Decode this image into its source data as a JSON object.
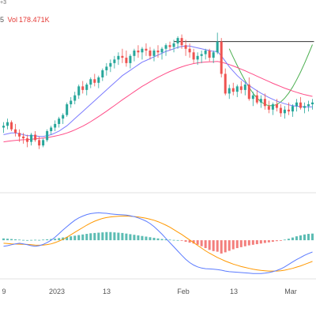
{
  "header": {
    "top_fragment": "+3",
    "legend_fragment": "5",
    "volume_label": "Vol",
    "volume_value": "178.471K"
  },
  "chart_data": [
    {
      "type": "candlestick",
      "xaxis_ticks": [
        "9",
        "2023",
        "13",
        "Feb",
        "13",
        "Mar"
      ],
      "colors": {
        "up": "#26a69a",
        "down": "#ef5350",
        "ma_fast": "#7b7bff",
        "ma_slow": "#ff4d88",
        "arc": "#4caf50",
        "hline": "#333333"
      },
      "candles": [
        [
          132,
          135,
          129,
          133
        ],
        [
          133,
          137,
          131,
          135
        ],
        [
          135,
          136,
          130,
          131
        ],
        [
          131,
          134,
          127,
          129
        ],
        [
          129,
          131,
          124,
          127
        ],
        [
          127,
          129,
          123,
          126
        ],
        [
          126,
          128,
          121,
          124
        ],
        [
          124,
          129,
          122,
          128
        ],
        [
          128,
          130,
          124,
          125
        ],
        [
          125,
          127,
          120,
          122
        ],
        [
          122,
          126,
          121,
          125
        ],
        [
          125,
          131,
          124,
          130
        ],
        [
          130,
          133,
          128,
          132
        ],
        [
          132,
          136,
          130,
          134
        ],
        [
          134,
          138,
          132,
          137
        ],
        [
          137,
          140,
          134,
          139
        ],
        [
          139,
          146,
          138,
          145
        ],
        [
          145,
          149,
          143,
          147
        ],
        [
          147,
          152,
          145,
          150
        ],
        [
          150,
          156,
          148,
          155
        ],
        [
          155,
          158,
          151,
          153
        ],
        [
          153,
          157,
          150,
          156
        ],
        [
          156,
          160,
          154,
          159
        ],
        [
          159,
          162,
          155,
          157
        ],
        [
          157,
          161,
          154,
          160
        ],
        [
          160,
          165,
          158,
          164
        ],
        [
          164,
          168,
          161,
          166
        ],
        [
          166,
          170,
          163,
          168
        ],
        [
          168,
          172,
          165,
          170
        ],
        [
          170,
          174,
          167,
          172
        ],
        [
          172,
          176,
          168,
          171
        ],
        [
          171,
          175,
          166,
          168
        ],
        [
          168,
          173,
          165,
          172
        ],
        [
          172,
          176,
          169,
          175
        ],
        [
          175,
          178,
          171,
          174
        ],
        [
          174,
          177,
          170,
          176
        ],
        [
          176,
          179,
          172,
          175
        ],
        [
          175,
          177,
          170,
          172
        ],
        [
          172,
          176,
          169,
          175
        ],
        [
          175,
          178,
          171,
          174
        ],
        [
          174,
          177,
          170,
          176
        ],
        [
          176,
          179,
          172,
          178
        ],
        [
          178,
          180,
          175,
          177
        ],
        [
          177,
          181,
          174,
          179
        ],
        [
          179,
          183,
          176,
          182
        ],
        [
          182,
          184,
          176,
          178
        ],
        [
          178,
          181,
          172,
          176
        ],
        [
          176,
          179,
          171,
          174
        ],
        [
          174,
          176,
          168,
          170
        ],
        [
          170,
          174,
          167,
          172
        ],
        [
          172,
          175,
          168,
          173
        ],
        [
          173,
          176,
          170,
          175
        ],
        [
          175,
          176,
          169,
          171
        ],
        [
          171,
          175,
          168,
          174
        ],
        [
          174,
          185,
          173,
          180
        ],
        [
          180,
          182,
          160,
          162
        ],
        [
          162,
          165,
          150,
          151
        ],
        [
          151,
          156,
          148,
          154
        ],
        [
          154,
          157,
          150,
          152
        ],
        [
          152,
          156,
          149,
          155
        ],
        [
          155,
          158,
          151,
          153
        ],
        [
          153,
          157,
          150,
          156
        ],
        [
          156,
          160,
          147,
          148
        ],
        [
          148,
          152,
          144,
          150
        ],
        [
          150,
          153,
          145,
          146
        ],
        [
          146,
          150,
          143,
          148
        ],
        [
          148,
          151,
          142,
          144
        ],
        [
          144,
          147,
          140,
          142
        ],
        [
          142,
          146,
          139,
          145
        ],
        [
          145,
          148,
          141,
          143
        ],
        [
          143,
          145,
          138,
          140
        ],
        [
          140,
          144,
          137,
          142
        ],
        [
          142,
          146,
          139,
          141
        ],
        [
          141,
          145,
          138,
          144
        ],
        [
          144,
          148,
          141,
          146
        ],
        [
          146,
          149,
          142,
          143
        ],
        [
          143,
          146,
          140,
          144
        ],
        [
          144,
          147,
          141,
          145
        ],
        [
          145,
          148,
          142,
          146
        ]
      ],
      "ma_fast": [
        128,
        128.5,
        129,
        129,
        128.5,
        128,
        127.5,
        127.5,
        127.5,
        127,
        127,
        127.5,
        128,
        129,
        130,
        131.5,
        133,
        135,
        137,
        139,
        141,
        143,
        145,
        147,
        149,
        151,
        153,
        155,
        157,
        159,
        161,
        162.5,
        164,
        165.5,
        167,
        168.5,
        169.5,
        170.5,
        171.5,
        172.5,
        173.5,
        174.5,
        175.2,
        176,
        176.8,
        177.3,
        177.5,
        177.5,
        177,
        176.5,
        176,
        175.5,
        175,
        174.5,
        174.5,
        172,
        169,
        166,
        163.5,
        161,
        159,
        157.2,
        155.5,
        154,
        152.6,
        151.2,
        150,
        148.8,
        147.8,
        146.8,
        146,
        145.3,
        144.7,
        144.2,
        143.9,
        143.7,
        143.6,
        143.6,
        143.6
      ],
      "ma_slow": [
        124,
        124.3,
        124.6,
        124.8,
        125,
        125.2,
        125.3,
        125.5,
        125.7,
        125.9,
        126.1,
        126.4,
        126.8,
        127.2,
        127.7,
        128.3,
        129,
        129.8,
        130.7,
        131.7,
        132.8,
        134,
        135.3,
        136.7,
        138.1,
        139.6,
        141.1,
        142.7,
        144.3,
        145.9,
        147.5,
        149,
        150.5,
        152,
        153.5,
        155,
        156.3,
        157.6,
        158.9,
        160.1,
        161.2,
        162.3,
        163.3,
        164.2,
        165.1,
        165.9,
        166.6,
        167.2,
        167.7,
        168.1,
        168.4,
        168.6,
        168.7,
        168.8,
        168.9,
        168.5,
        167.9,
        167.2,
        166.4,
        165.5,
        164.6,
        163.7,
        162.7,
        161.7,
        160.7,
        159.7,
        158.7,
        157.7,
        156.7,
        155.8,
        154.9,
        154,
        153.2,
        152.4,
        151.7,
        151,
        150.4,
        149.9,
        149.4
      ],
      "resistance_level": 180,
      "ylim": [
        115,
        190
      ]
    },
    {
      "type": "macd",
      "histogram": [
        0.6,
        0.5,
        0.4,
        0.3,
        0.2,
        0.1,
        0.05,
        0.1,
        0.15,
        0.1,
        0.2,
        0.3,
        0.4,
        0.5,
        0.7,
        0.9,
        1.1,
        1.3,
        1.5,
        1.7,
        1.9,
        2.1,
        2.3,
        2.4,
        2.5,
        2.6,
        2.7,
        2.7,
        2.6,
        2.5,
        2.4,
        2.2,
        2.0,
        1.8,
        1.6,
        1.4,
        1.2,
        1.0,
        0.8,
        0.6,
        0.4,
        0.3,
        0.2,
        0.1,
        0.05,
        -0.2,
        -0.5,
        -0.8,
        -1.1,
        -1.5,
        -2.0,
        -2.6,
        -3.2,
        -3.6,
        -3.8,
        -4.4,
        -4.0,
        -3.5,
        -3.0,
        -2.6,
        -2.3,
        -2.0,
        -1.7,
        -1.5,
        -1.3,
        -1.1,
        -0.9,
        -0.7,
        -0.5,
        -0.3,
        -0.1,
        0.2,
        0.5,
        0.9,
        1.3,
        1.6,
        1.9,
        2.1,
        2.2
      ],
      "macd_line": [
        -2,
        -1.8,
        -1.5,
        -1.2,
        -1,
        -1.2,
        -1.5,
        -1.8,
        -2,
        -1.8,
        -1.4,
        -0.8,
        0,
        1,
        2.2,
        3.4,
        4.5,
        5.6,
        6.6,
        7.4,
        8.0,
        8.5,
        8.8,
        9.0,
        9.1,
        9.0,
        8.9,
        8.7,
        8.6,
        8.5,
        8.4,
        8.3,
        8.1,
        7.8,
        7.4,
        6.9,
        6.3,
        5.5,
        4.5,
        3.3,
        2.0,
        0.6,
        -0.8,
        -2.2,
        -3.6,
        -5.0,
        -6.3,
        -7.4,
        -8.2,
        -8.8,
        -9.2,
        -9.4,
        -9.5,
        -9.6,
        -9.7,
        -9.9,
        -10.2,
        -10.4,
        -10.5,
        -10.6,
        -10.7,
        -10.8,
        -10.9,
        -11.0,
        -11.0,
        -11.0,
        -10.9,
        -10.7,
        -10.4,
        -10.0,
        -9.5,
        -8.8,
        -8.0,
        -7.2,
        -6.4,
        -5.7,
        -5.0,
        -4.4,
        -3.9
      ],
      "signal_line": [
        -1,
        -1.1,
        -1.2,
        -1.25,
        -1.3,
        -1.35,
        -1.4,
        -1.5,
        -1.6,
        -1.65,
        -1.6,
        -1.45,
        -1.2,
        -0.8,
        -0.3,
        0.3,
        1.0,
        1.8,
        2.6,
        3.4,
        4.2,
        5.0,
        5.7,
        6.3,
        6.8,
        7.2,
        7.5,
        7.7,
        7.85,
        7.95,
        8.0,
        8.0,
        7.95,
        7.85,
        7.7,
        7.5,
        7.25,
        6.95,
        6.6,
        6.15,
        5.6,
        5.0,
        4.3,
        3.5,
        2.7,
        1.9,
        1.0,
        0.1,
        -0.8,
        -1.7,
        -2.6,
        -3.5,
        -4.3,
        -5.0,
        -5.7,
        -6.3,
        -6.9,
        -7.4,
        -7.9,
        -8.3,
        -8.7,
        -9.0,
        -9.3,
        -9.6,
        -9.8,
        -10.0,
        -10.1,
        -10.2,
        -10.2,
        -10.2,
        -10.1,
        -9.9,
        -9.6,
        -9.3,
        -8.9,
        -8.5,
        -8.0,
        -7.5,
        -7.0
      ],
      "colors": {
        "macd": "#5b7bff",
        "signal": "#ff9800",
        "hist_pos": "#26a69a",
        "hist_neg": "#ef5350"
      },
      "ylim": [
        -12,
        11
      ]
    }
  ]
}
